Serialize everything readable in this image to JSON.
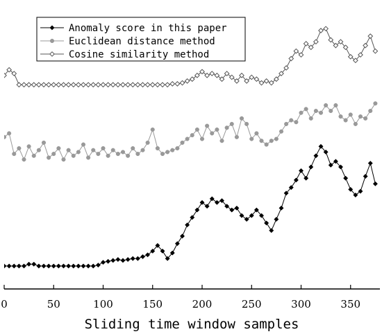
{
  "chart_data": {
    "type": "line",
    "xlabel": "Sliding time window samples",
    "ylabel": "",
    "xlim": [
      0,
      380
    ],
    "ylim": [
      0,
      13.2
    ],
    "xticks": [
      0,
      50,
      100,
      150,
      200,
      250,
      300,
      350
    ],
    "grid": false,
    "legend_position": "top-left",
    "series": [
      {
        "name": "Anomaly score in this paper",
        "color": "#000000",
        "marker": "filled-diamond",
        "x": [
          0,
          5,
          10,
          15,
          20,
          25,
          30,
          35,
          40,
          45,
          50,
          55,
          60,
          65,
          70,
          75,
          80,
          85,
          90,
          95,
          100,
          105,
          110,
          115,
          120,
          125,
          130,
          135,
          140,
          145,
          150,
          155,
          160,
          165,
          170,
          175,
          180,
          185,
          190,
          195,
          200,
          205,
          210,
          215,
          220,
          225,
          230,
          235,
          240,
          245,
          250,
          255,
          260,
          265,
          270,
          275,
          280,
          285,
          290,
          295,
          300,
          305,
          310,
          315,
          320,
          325,
          330,
          335,
          340,
          345,
          350,
          355,
          360,
          365,
          370,
          375
        ],
        "y": [
          0.3,
          0.3,
          0.3,
          0.3,
          0.3,
          0.4,
          0.4,
          0.3,
          0.3,
          0.3,
          0.3,
          0.3,
          0.3,
          0.3,
          0.3,
          0.3,
          0.3,
          0.3,
          0.3,
          0.35,
          0.5,
          0.55,
          0.6,
          0.65,
          0.6,
          0.65,
          0.7,
          0.7,
          0.8,
          0.9,
          1.1,
          1.4,
          1.1,
          0.7,
          1.0,
          1.5,
          1.9,
          2.5,
          2.9,
          3.3,
          3.7,
          3.5,
          3.9,
          3.7,
          3.8,
          3.5,
          3.3,
          3.4,
          3.0,
          2.8,
          3.0,
          3.3,
          3.0,
          2.6,
          2.2,
          2.8,
          3.4,
          4.2,
          4.5,
          4.9,
          5.4,
          5.0,
          5.6,
          6.2,
          6.7,
          6.4,
          5.7,
          5.9,
          5.6,
          5.0,
          4.4,
          4.1,
          4.3,
          5.1,
          5.8,
          4.7
        ]
      },
      {
        "name": "Euclidean distance method",
        "color": "#999999",
        "marker": "filled-circle",
        "x": [
          0,
          5,
          10,
          15,
          20,
          25,
          30,
          35,
          40,
          45,
          50,
          55,
          60,
          65,
          70,
          75,
          80,
          85,
          90,
          95,
          100,
          105,
          110,
          115,
          120,
          125,
          130,
          135,
          140,
          145,
          150,
          155,
          160,
          165,
          170,
          175,
          180,
          185,
          190,
          195,
          200,
          205,
          210,
          215,
          220,
          225,
          230,
          235,
          240,
          245,
          250,
          255,
          260,
          265,
          270,
          275,
          280,
          285,
          290,
          295,
          300,
          305,
          310,
          315,
          320,
          325,
          330,
          335,
          340,
          345,
          350,
          355,
          360,
          365,
          370,
          375
        ],
        "y": [
          7.2,
          7.4,
          6.3,
          6.6,
          6.0,
          6.7,
          6.2,
          6.5,
          6.9,
          6.1,
          6.3,
          6.6,
          6.0,
          6.5,
          6.2,
          6.4,
          6.8,
          6.1,
          6.5,
          6.3,
          6.6,
          6.2,
          6.5,
          6.3,
          6.4,
          6.2,
          6.6,
          6.3,
          6.5,
          6.9,
          7.6,
          6.6,
          6.3,
          6.4,
          6.5,
          6.6,
          6.9,
          7.1,
          7.3,
          7.6,
          7.1,
          7.8,
          7.4,
          7.6,
          7.0,
          7.7,
          7.9,
          7.2,
          8.2,
          7.9,
          7.1,
          7.4,
          7.0,
          6.8,
          7.0,
          7.1,
          7.5,
          7.9,
          8.1,
          8.0,
          8.5,
          8.7,
          8.2,
          8.6,
          8.5,
          8.9,
          8.6,
          8.9,
          8.3,
          8.1,
          8.4,
          7.9,
          8.3,
          8.2,
          8.6,
          9.0
        ]
      },
      {
        "name": "Cosine similarity method",
        "color": "#555555",
        "marker": "open-diamond",
        "x": [
          0,
          5,
          10,
          15,
          20,
          25,
          30,
          35,
          40,
          45,
          50,
          55,
          60,
          65,
          70,
          75,
          80,
          85,
          90,
          95,
          100,
          105,
          110,
          115,
          120,
          125,
          130,
          135,
          140,
          145,
          150,
          155,
          160,
          165,
          170,
          175,
          180,
          185,
          190,
          195,
          200,
          205,
          210,
          215,
          220,
          225,
          230,
          235,
          240,
          245,
          250,
          255,
          260,
          265,
          270,
          275,
          280,
          285,
          290,
          295,
          300,
          305,
          310,
          315,
          320,
          325,
          330,
          335,
          340,
          345,
          350,
          355,
          360,
          365,
          370,
          375
        ],
        "y": [
          10.5,
          10.8,
          10.6,
          10.0,
          10.0,
          10.0,
          10.0,
          10.0,
          10.0,
          10.0,
          10.0,
          10.0,
          10.0,
          10.0,
          10.0,
          10.0,
          10.0,
          10.0,
          10.0,
          10.0,
          10.0,
          10.0,
          10.0,
          10.0,
          10.0,
          10.0,
          10.0,
          10.0,
          10.0,
          10.0,
          10.0,
          10.0,
          10.0,
          10.0,
          10.05,
          10.05,
          10.1,
          10.2,
          10.3,
          10.5,
          10.7,
          10.5,
          10.6,
          10.5,
          10.3,
          10.6,
          10.4,
          10.2,
          10.5,
          10.2,
          10.4,
          10.3,
          10.1,
          10.2,
          10.1,
          10.3,
          10.6,
          10.9,
          11.4,
          11.8,
          11.6,
          12.2,
          12.0,
          12.3,
          12.9,
          13.0,
          12.4,
          12.1,
          12.3,
          12.0,
          11.5,
          11.3,
          11.6,
          12.1,
          12.6,
          11.8
        ]
      }
    ]
  }
}
